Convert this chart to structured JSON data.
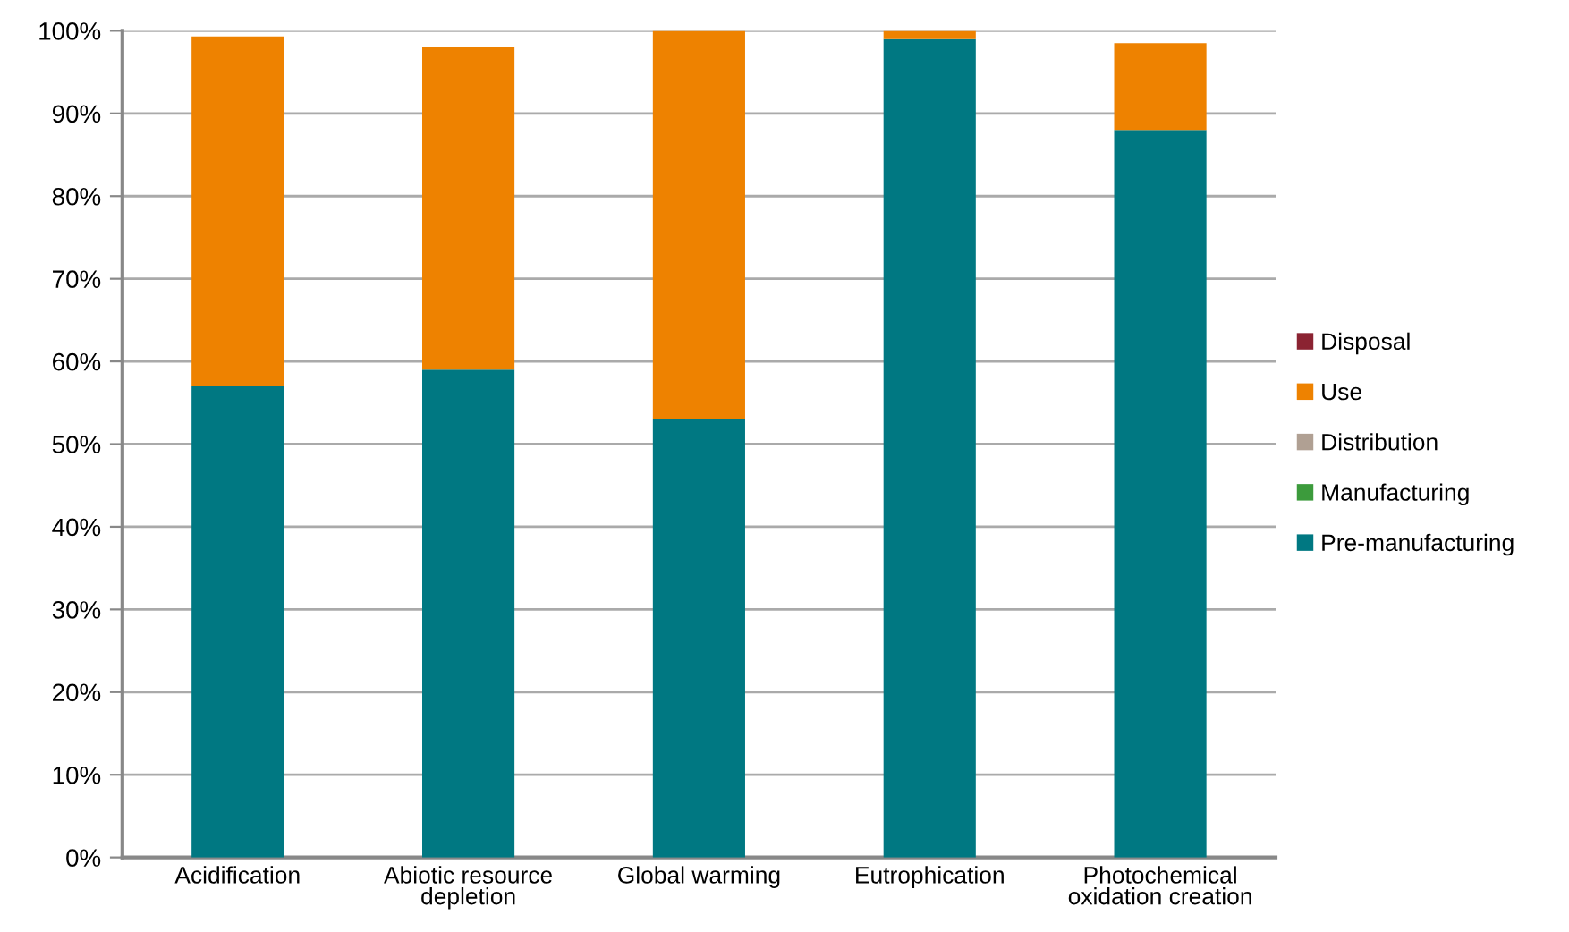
{
  "chart_data": {
    "type": "bar",
    "stacked": true,
    "categories": [
      "Acidification",
      "Abiotic resource\ndepletion",
      "Global warming",
      "Eutrophication",
      "Photochemical\noxidation creation"
    ],
    "series": [
      {
        "name": "Pre-manufacturing",
        "color": "#007882",
        "values": [
          57,
          59,
          53,
          99,
          88
        ]
      },
      {
        "name": "Manufacturing",
        "color": "#3c9b3c",
        "values": [
          0,
          0,
          0,
          0,
          0
        ]
      },
      {
        "name": "Distribution",
        "color": "#b0a093",
        "values": [
          0,
          0,
          0,
          0,
          0
        ]
      },
      {
        "name": "Use",
        "color": "#ee8200",
        "values": [
          42.3,
          39,
          47,
          1,
          10.5
        ]
      },
      {
        "name": "Disposal",
        "color": "#8b2332",
        "values": [
          0,
          0,
          0,
          0,
          0
        ]
      }
    ],
    "ylim": [
      0,
      100
    ],
    "yticks": [
      {
        "value": 0,
        "label": "0%"
      },
      {
        "value": 10,
        "label": "10%"
      },
      {
        "value": 20,
        "label": "20%"
      },
      {
        "value": 30,
        "label": "30%"
      },
      {
        "value": 40,
        "label": "40%"
      },
      {
        "value": 50,
        "label": "50%"
      },
      {
        "value": 60,
        "label": "60%"
      },
      {
        "value": 70,
        "label": "70%"
      },
      {
        "value": 80,
        "label": "80%"
      },
      {
        "value": 90,
        "label": "90%"
      },
      {
        "value": 100,
        "label": "100%"
      }
    ],
    "grid": "y",
    "legend": "right"
  }
}
